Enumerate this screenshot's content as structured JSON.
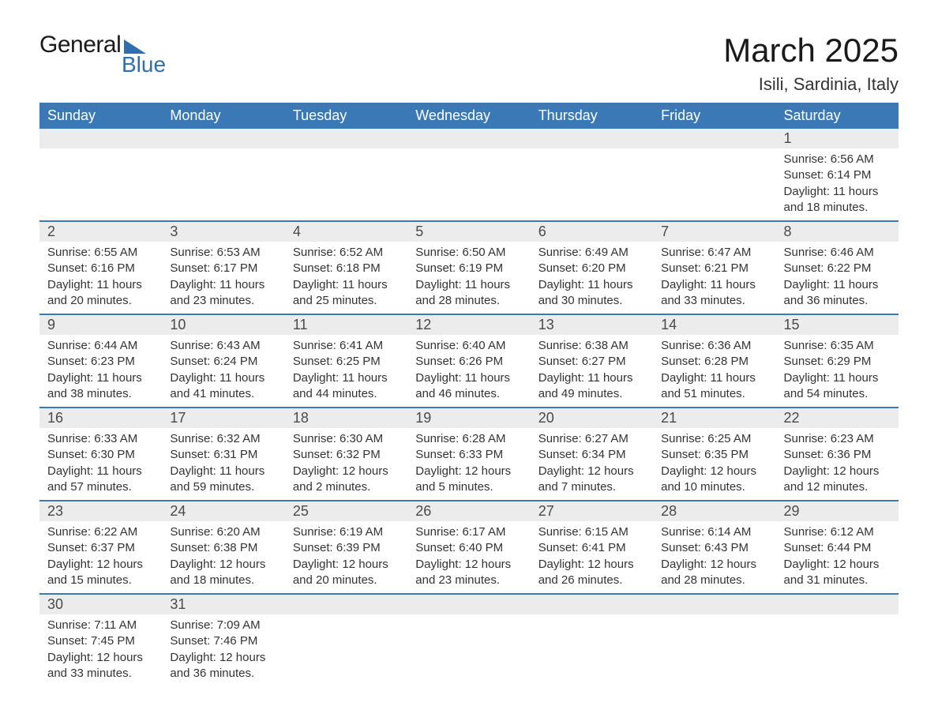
{
  "brand": {
    "name1": "General",
    "name2": "Blue",
    "accent_color": "#2f6fb0"
  },
  "title": "March 2025",
  "location": "Isili, Sardinia, Italy",
  "header_bg": "#3b78b6",
  "header_fg": "#ffffff",
  "daynum_bg": "#ececec",
  "row_border": "#3b78b6",
  "text_color": "#333333",
  "weekdays": [
    "Sunday",
    "Monday",
    "Tuesday",
    "Wednesday",
    "Thursday",
    "Friday",
    "Saturday"
  ],
  "weeks": [
    [
      null,
      null,
      null,
      null,
      null,
      null,
      {
        "n": "1",
        "sr": "Sunrise: 6:56 AM",
        "ss": "Sunset: 6:14 PM",
        "dl1": "Daylight: 11 hours",
        "dl2": "and 18 minutes."
      }
    ],
    [
      {
        "n": "2",
        "sr": "Sunrise: 6:55 AM",
        "ss": "Sunset: 6:16 PM",
        "dl1": "Daylight: 11 hours",
        "dl2": "and 20 minutes."
      },
      {
        "n": "3",
        "sr": "Sunrise: 6:53 AM",
        "ss": "Sunset: 6:17 PM",
        "dl1": "Daylight: 11 hours",
        "dl2": "and 23 minutes."
      },
      {
        "n": "4",
        "sr": "Sunrise: 6:52 AM",
        "ss": "Sunset: 6:18 PM",
        "dl1": "Daylight: 11 hours",
        "dl2": "and 25 minutes."
      },
      {
        "n": "5",
        "sr": "Sunrise: 6:50 AM",
        "ss": "Sunset: 6:19 PM",
        "dl1": "Daylight: 11 hours",
        "dl2": "and 28 minutes."
      },
      {
        "n": "6",
        "sr": "Sunrise: 6:49 AM",
        "ss": "Sunset: 6:20 PM",
        "dl1": "Daylight: 11 hours",
        "dl2": "and 30 minutes."
      },
      {
        "n": "7",
        "sr": "Sunrise: 6:47 AM",
        "ss": "Sunset: 6:21 PM",
        "dl1": "Daylight: 11 hours",
        "dl2": "and 33 minutes."
      },
      {
        "n": "8",
        "sr": "Sunrise: 6:46 AM",
        "ss": "Sunset: 6:22 PM",
        "dl1": "Daylight: 11 hours",
        "dl2": "and 36 minutes."
      }
    ],
    [
      {
        "n": "9",
        "sr": "Sunrise: 6:44 AM",
        "ss": "Sunset: 6:23 PM",
        "dl1": "Daylight: 11 hours",
        "dl2": "and 38 minutes."
      },
      {
        "n": "10",
        "sr": "Sunrise: 6:43 AM",
        "ss": "Sunset: 6:24 PM",
        "dl1": "Daylight: 11 hours",
        "dl2": "and 41 minutes."
      },
      {
        "n": "11",
        "sr": "Sunrise: 6:41 AM",
        "ss": "Sunset: 6:25 PM",
        "dl1": "Daylight: 11 hours",
        "dl2": "and 44 minutes."
      },
      {
        "n": "12",
        "sr": "Sunrise: 6:40 AM",
        "ss": "Sunset: 6:26 PM",
        "dl1": "Daylight: 11 hours",
        "dl2": "and 46 minutes."
      },
      {
        "n": "13",
        "sr": "Sunrise: 6:38 AM",
        "ss": "Sunset: 6:27 PM",
        "dl1": "Daylight: 11 hours",
        "dl2": "and 49 minutes."
      },
      {
        "n": "14",
        "sr": "Sunrise: 6:36 AM",
        "ss": "Sunset: 6:28 PM",
        "dl1": "Daylight: 11 hours",
        "dl2": "and 51 minutes."
      },
      {
        "n": "15",
        "sr": "Sunrise: 6:35 AM",
        "ss": "Sunset: 6:29 PM",
        "dl1": "Daylight: 11 hours",
        "dl2": "and 54 minutes."
      }
    ],
    [
      {
        "n": "16",
        "sr": "Sunrise: 6:33 AM",
        "ss": "Sunset: 6:30 PM",
        "dl1": "Daylight: 11 hours",
        "dl2": "and 57 minutes."
      },
      {
        "n": "17",
        "sr": "Sunrise: 6:32 AM",
        "ss": "Sunset: 6:31 PM",
        "dl1": "Daylight: 11 hours",
        "dl2": "and 59 minutes."
      },
      {
        "n": "18",
        "sr": "Sunrise: 6:30 AM",
        "ss": "Sunset: 6:32 PM",
        "dl1": "Daylight: 12 hours",
        "dl2": "and 2 minutes."
      },
      {
        "n": "19",
        "sr": "Sunrise: 6:28 AM",
        "ss": "Sunset: 6:33 PM",
        "dl1": "Daylight: 12 hours",
        "dl2": "and 5 minutes."
      },
      {
        "n": "20",
        "sr": "Sunrise: 6:27 AM",
        "ss": "Sunset: 6:34 PM",
        "dl1": "Daylight: 12 hours",
        "dl2": "and 7 minutes."
      },
      {
        "n": "21",
        "sr": "Sunrise: 6:25 AM",
        "ss": "Sunset: 6:35 PM",
        "dl1": "Daylight: 12 hours",
        "dl2": "and 10 minutes."
      },
      {
        "n": "22",
        "sr": "Sunrise: 6:23 AM",
        "ss": "Sunset: 6:36 PM",
        "dl1": "Daylight: 12 hours",
        "dl2": "and 12 minutes."
      }
    ],
    [
      {
        "n": "23",
        "sr": "Sunrise: 6:22 AM",
        "ss": "Sunset: 6:37 PM",
        "dl1": "Daylight: 12 hours",
        "dl2": "and 15 minutes."
      },
      {
        "n": "24",
        "sr": "Sunrise: 6:20 AM",
        "ss": "Sunset: 6:38 PM",
        "dl1": "Daylight: 12 hours",
        "dl2": "and 18 minutes."
      },
      {
        "n": "25",
        "sr": "Sunrise: 6:19 AM",
        "ss": "Sunset: 6:39 PM",
        "dl1": "Daylight: 12 hours",
        "dl2": "and 20 minutes."
      },
      {
        "n": "26",
        "sr": "Sunrise: 6:17 AM",
        "ss": "Sunset: 6:40 PM",
        "dl1": "Daylight: 12 hours",
        "dl2": "and 23 minutes."
      },
      {
        "n": "27",
        "sr": "Sunrise: 6:15 AM",
        "ss": "Sunset: 6:41 PM",
        "dl1": "Daylight: 12 hours",
        "dl2": "and 26 minutes."
      },
      {
        "n": "28",
        "sr": "Sunrise: 6:14 AM",
        "ss": "Sunset: 6:43 PM",
        "dl1": "Daylight: 12 hours",
        "dl2": "and 28 minutes."
      },
      {
        "n": "29",
        "sr": "Sunrise: 6:12 AM",
        "ss": "Sunset: 6:44 PM",
        "dl1": "Daylight: 12 hours",
        "dl2": "and 31 minutes."
      }
    ],
    [
      {
        "n": "30",
        "sr": "Sunrise: 7:11 AM",
        "ss": "Sunset: 7:45 PM",
        "dl1": "Daylight: 12 hours",
        "dl2": "and 33 minutes."
      },
      {
        "n": "31",
        "sr": "Sunrise: 7:09 AM",
        "ss": "Sunset: 7:46 PM",
        "dl1": "Daylight: 12 hours",
        "dl2": "and 36 minutes."
      },
      null,
      null,
      null,
      null,
      null
    ]
  ]
}
